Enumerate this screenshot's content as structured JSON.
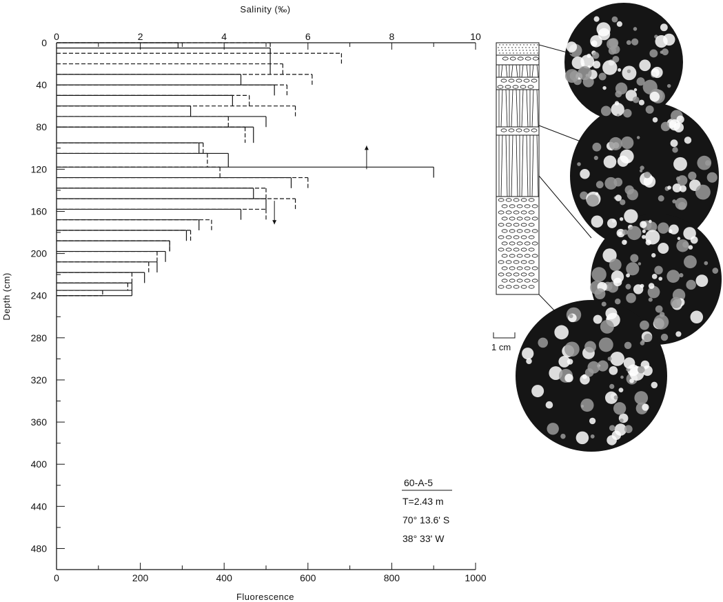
{
  "chart_data": {
    "type": "line",
    "subtype": "step-profile",
    "top_axis": {
      "label": "Salinity (‰)",
      "range": [
        0,
        10
      ],
      "ticks": [
        0,
        2,
        4,
        6,
        8,
        10
      ]
    },
    "bottom_axis": {
      "label": "Fluorescence",
      "range": [
        0,
        1000
      ],
      "ticks": [
        0,
        200,
        400,
        600,
        800,
        1000
      ]
    },
    "y_axis": {
      "label": "Depth (cm)",
      "range": [
        0,
        500
      ],
      "inverted": true,
      "ticks": [
        0,
        40,
        80,
        120,
        160,
        200,
        240,
        280,
        320,
        360,
        400,
        440,
        480
      ]
    },
    "series": [
      {
        "axis": "salinity",
        "style": "solid",
        "steps": [
          {
            "from": 0,
            "to": 5,
            "value": 2.9
          },
          {
            "from": 5,
            "to": 30,
            "value": 5.1
          },
          {
            "from": 30,
            "to": 40,
            "value": 4.4
          },
          {
            "from": 40,
            "to": 50,
            "value": 5.2
          },
          {
            "from": 50,
            "to": 60,
            "value": 4.2
          },
          {
            "from": 60,
            "to": 70,
            "value": 3.2
          },
          {
            "from": 70,
            "to": 80,
            "value": 5.0
          },
          {
            "from": 80,
            "to": 95,
            "value": 4.7
          },
          {
            "from": 95,
            "to": 105,
            "value": 3.4
          },
          {
            "from": 105,
            "to": 118,
            "value": 4.1
          },
          {
            "from": 118,
            "to": 128,
            "value": 9.0
          },
          {
            "from": 128,
            "to": 138,
            "value": 5.6
          },
          {
            "from": 138,
            "to": 148,
            "value": 4.7
          },
          {
            "from": 148,
            "to": 158,
            "value": 5.0
          },
          {
            "from": 158,
            "to": 168,
            "value": 4.4
          },
          {
            "from": 168,
            "to": 178,
            "value": 3.4
          },
          {
            "from": 178,
            "to": 188,
            "value": 3.1
          },
          {
            "from": 188,
            "to": 198,
            "value": 2.7
          },
          {
            "from": 198,
            "to": 208,
            "value": 2.6
          },
          {
            "from": 208,
            "to": 218,
            "value": 2.4
          },
          {
            "from": 218,
            "to": 228,
            "value": 2.1
          },
          {
            "from": 228,
            "to": 235,
            "value": 1.8
          },
          {
            "from": 235,
            "to": 240,
            "value": 1.8
          }
        ],
        "arrow": {
          "depth": 120,
          "value": 7.4,
          "direction": "up"
        }
      },
      {
        "axis": "fluorescence",
        "style": "dashed",
        "steps": [
          {
            "from": 0,
            "to": 10,
            "value": 510
          },
          {
            "from": 10,
            "to": 20,
            "value": 680
          },
          {
            "from": 20,
            "to": 30,
            "value": 540
          },
          {
            "from": 30,
            "to": 40,
            "value": 610
          },
          {
            "from": 40,
            "to": 50,
            "value": 550
          },
          {
            "from": 50,
            "to": 60,
            "value": 460
          },
          {
            "from": 60,
            "to": 70,
            "value": 570
          },
          {
            "from": 70,
            "to": 80,
            "value": 410
          },
          {
            "from": 80,
            "to": 95,
            "value": 450
          },
          {
            "from": 95,
            "to": 105,
            "value": 350
          },
          {
            "from": 105,
            "to": 118,
            "value": 360
          },
          {
            "from": 118,
            "to": 128,
            "value": 390
          },
          {
            "from": 128,
            "to": 138,
            "value": 600
          },
          {
            "from": 138,
            "to": 148,
            "value": 500
          },
          {
            "from": 148,
            "to": 158,
            "value": 570
          },
          {
            "from": 158,
            "to": 168,
            "value": 500
          },
          {
            "from": 168,
            "to": 178,
            "value": 370
          },
          {
            "from": 178,
            "to": 188,
            "value": 320
          },
          {
            "from": 188,
            "to": 198,
            "value": 270
          },
          {
            "from": 198,
            "to": 208,
            "value": 240
          },
          {
            "from": 208,
            "to": 218,
            "value": 220
          },
          {
            "from": 218,
            "to": 228,
            "value": 180
          },
          {
            "from": 228,
            "to": 235,
            "value": 170
          },
          {
            "from": 235,
            "to": 240,
            "value": 110
          }
        ],
        "arrow": {
          "depth": 150,
          "value": 520,
          "direction": "down"
        }
      }
    ],
    "annotation": {
      "station": "60-A-5",
      "thickness": "T=2.43 m",
      "latitude": "70° 13.6' S",
      "longitude": "38° 33' W"
    },
    "scale_bar_label": "1 cm",
    "grid": false
  }
}
